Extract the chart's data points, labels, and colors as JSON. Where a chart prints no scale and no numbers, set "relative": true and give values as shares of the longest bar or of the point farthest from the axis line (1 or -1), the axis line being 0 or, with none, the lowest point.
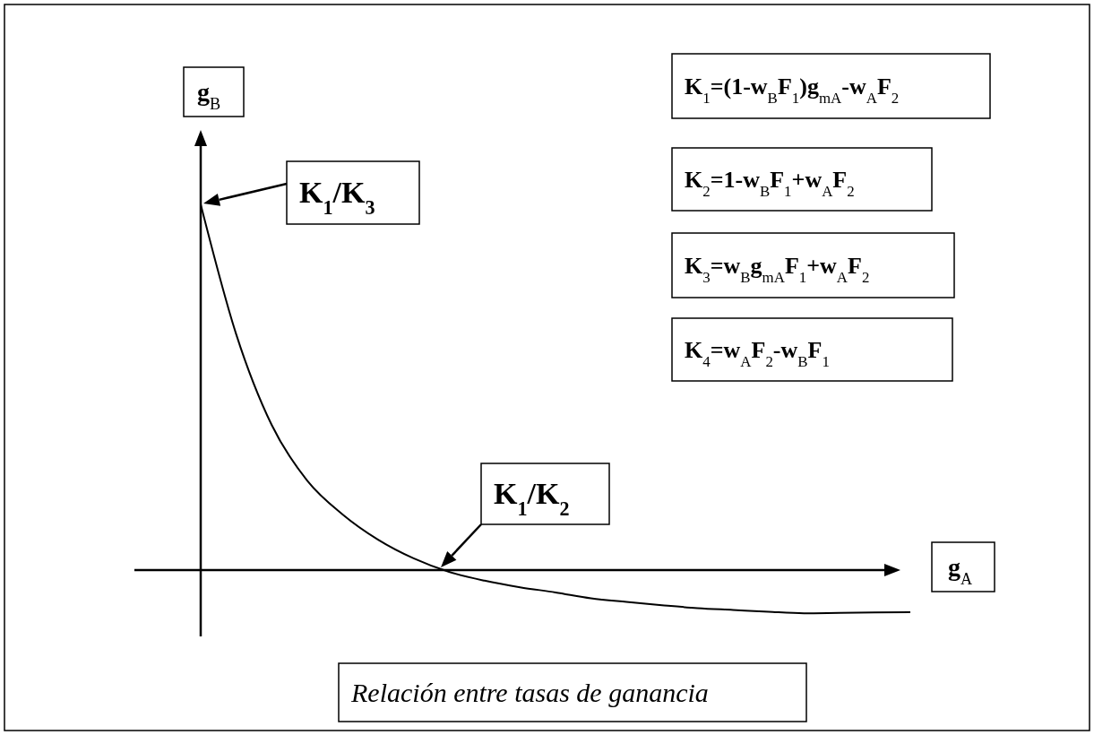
{
  "chart_data": {
    "type": "line",
    "relative": true,
    "title": "Relación entre tasas de ganancia",
    "xlabel": "g$_{A}$",
    "ylabel": "g$_{B}$",
    "categories": [
      null,
      null,
      null,
      null,
      null,
      null,
      null,
      null,
      null,
      null,
      null,
      null,
      null,
      null,
      null,
      null,
      null,
      null,
      null,
      null,
      null
    ],
    "values": [
      1.0,
      0.645,
      0.397,
      0.245,
      0.152,
      0.083,
      0.032,
      -0.005,
      -0.029,
      -0.047,
      -0.061,
      -0.077,
      -0.087,
      -0.096,
      -0.104,
      -0.109,
      -0.114,
      -0.118,
      -0.117,
      -0.116,
      -0.115
    ],
    "color": "#000000",
    "annotations": [
      "K$_{1}$=(1-w$_{B}$F$_{1}$)g$_{mA}$-w$_{A}$F$_{2}$",
      "K$_{2}$=1-w$_{B}$F$_{1}$+w$_{A}$F$_{2}$",
      "K$_{3}$=w$_{B}$g$_{mA}$F$_{1}$+w$_{A}$F$_{2}$",
      "K$_{4}$=w$_{A}$F$_{2}$-w$_{B}$F$_{1}$",
      "K$_{1}$/K$_{3}$",
      "K$_{1}$/K$_{2}$"
    ]
  }
}
